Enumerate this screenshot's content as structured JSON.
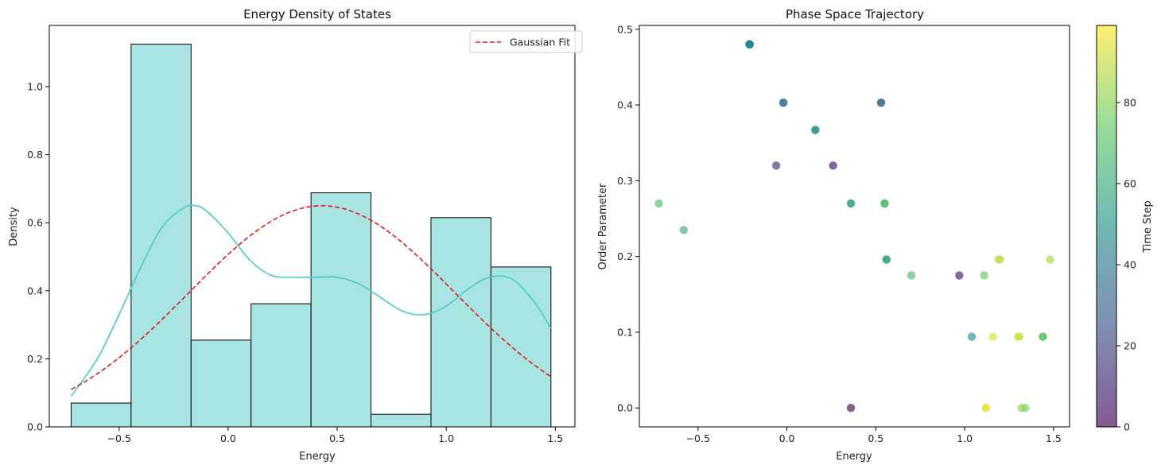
{
  "chart_data": [
    {
      "type": "bar",
      "subtype": "histogram-with-kde",
      "title": "Energy Density of States",
      "xlabel": "Energy",
      "ylabel": "Density",
      "xlim": [
        -0.82,
        1.59
      ],
      "ylim": [
        0,
        1.18
      ],
      "xticks": [
        -0.5,
        0.0,
        0.5,
        1.0,
        1.5
      ],
      "xtick_labels": [
        "−0.5",
        "0.0",
        "0.5",
        "1.0",
        "1.5"
      ],
      "yticks": [
        0.0,
        0.2,
        0.4,
        0.6,
        0.8,
        1.0
      ],
      "ytick_labels": [
        "0.0",
        "0.2",
        "0.4",
        "0.6",
        "0.8",
        "1.0"
      ],
      "bin_edges": [
        -0.72,
        -0.445,
        -0.17,
        0.105,
        0.38,
        0.655,
        0.93,
        1.205,
        1.48
      ],
      "values": [
        0.07,
        1.125,
        0.255,
        0.362,
        0.688,
        0.037,
        0.615,
        0.47
      ],
      "bar_color": "#a8e4e1",
      "bar_edge_color": "#000000",
      "kde": {
        "color": "#4ecdc4",
        "x": [
          -0.72,
          -0.6,
          -0.5,
          -0.4,
          -0.3,
          -0.2,
          -0.15,
          -0.1,
          0.0,
          0.1,
          0.2,
          0.3,
          0.4,
          0.5,
          0.6,
          0.7,
          0.8,
          0.9,
          1.0,
          1.1,
          1.2,
          1.3,
          1.4,
          1.48
        ],
        "y": [
          0.09,
          0.2,
          0.33,
          0.47,
          0.59,
          0.645,
          0.65,
          0.635,
          0.57,
          0.49,
          0.445,
          0.44,
          0.44,
          0.44,
          0.42,
          0.38,
          0.34,
          0.33,
          0.355,
          0.405,
          0.44,
          0.435,
          0.37,
          0.29
        ]
      },
      "gaussian_fit": {
        "name": "Gaussian Fit",
        "color": "#e31a1c",
        "mean": 0.43,
        "std": 0.61,
        "peak": 0.65,
        "x_range": [
          -0.72,
          1.48
        ]
      },
      "legend": {
        "entries": [
          "Gaussian Fit"
        ],
        "placement": "top-right"
      }
    },
    {
      "type": "scatter",
      "title": "Phase Space Trajectory",
      "xlabel": "Energy",
      "ylabel": "Order Parameter",
      "xlim": [
        -0.83,
        1.59
      ],
      "ylim": [
        -0.025,
        0.505
      ],
      "xticks": [
        -0.5,
        0.0,
        0.5,
        1.0,
        1.5
      ],
      "xtick_labels": [
        "−0.5",
        "0.0",
        "0.5",
        "1.0",
        "1.5"
      ],
      "yticks": [
        0.0,
        0.1,
        0.2,
        0.3,
        0.4,
        0.5
      ],
      "ytick_labels": [
        "0.0",
        "0.1",
        "0.2",
        "0.3",
        "0.4",
        "0.5"
      ],
      "colormap": "viridis",
      "alpha": 0.65,
      "points": [
        {
          "x": 0.36,
          "y": 0.0,
          "t": 2
        },
        {
          "x": 0.26,
          "y": 0.32,
          "t": 5
        },
        {
          "x": 0.97,
          "y": 0.175,
          "t": 7
        },
        {
          "x": -0.06,
          "y": 0.32,
          "t": 14
        },
        {
          "x": 0.53,
          "y": 0.403,
          "t": 33
        },
        {
          "x": 0.53,
          "y": 0.403,
          "t": 34
        },
        {
          "x": -0.02,
          "y": 0.403,
          "t": 35
        },
        {
          "x": -0.02,
          "y": 0.403,
          "t": 36
        },
        {
          "x": -0.21,
          "y": 0.48,
          "t": 38
        },
        {
          "x": -0.21,
          "y": 0.48,
          "t": 40
        },
        {
          "x": -0.21,
          "y": 0.48,
          "t": 42
        },
        {
          "x": -0.21,
          "y": 0.48,
          "t": 44
        },
        {
          "x": -0.21,
          "y": 0.48,
          "t": 46
        },
        {
          "x": 0.16,
          "y": 0.367,
          "t": 48
        },
        {
          "x": 0.16,
          "y": 0.367,
          "t": 50
        },
        {
          "x": 1.04,
          "y": 0.094,
          "t": 50
        },
        {
          "x": 0.56,
          "y": 0.196,
          "t": 54
        },
        {
          "x": 0.56,
          "y": 0.196,
          "t": 55
        },
        {
          "x": 0.36,
          "y": 0.27,
          "t": 57
        },
        {
          "x": 0.36,
          "y": 0.27,
          "t": 58
        },
        {
          "x": -0.58,
          "y": 0.235,
          "t": 62
        },
        {
          "x": 0.55,
          "y": 0.27,
          "t": 64
        },
        {
          "x": 0.55,
          "y": 0.27,
          "t": 66
        },
        {
          "x": 0.7,
          "y": 0.175,
          "t": 67
        },
        {
          "x": -0.72,
          "y": 0.27,
          "t": 70
        },
        {
          "x": 1.44,
          "y": 0.094,
          "t": 71
        },
        {
          "x": 1.44,
          "y": 0.094,
          "t": 72
        },
        {
          "x": 1.11,
          "y": 0.175,
          "t": 75
        },
        {
          "x": 1.34,
          "y": 0.0,
          "t": 78
        },
        {
          "x": 1.32,
          "y": 0.0,
          "t": 82
        },
        {
          "x": 1.48,
          "y": 0.196,
          "t": 86
        },
        {
          "x": 1.19,
          "y": 0.196,
          "t": 88
        },
        {
          "x": 1.2,
          "y": 0.196,
          "t": 89
        },
        {
          "x": 1.3,
          "y": 0.094,
          "t": 90
        },
        {
          "x": 1.31,
          "y": 0.094,
          "t": 91
        },
        {
          "x": 1.16,
          "y": 0.094,
          "t": 93
        },
        {
          "x": 1.12,
          "y": 0.0,
          "t": 95
        },
        {
          "x": 1.12,
          "y": 0.0,
          "t": 96
        }
      ],
      "colorbar": {
        "label": "Time Step",
        "range": [
          0,
          99
        ],
        "ticks": [
          0,
          20,
          40,
          60,
          80
        ],
        "tick_labels": [
          "0",
          "20",
          "40",
          "60",
          "80"
        ]
      }
    }
  ]
}
